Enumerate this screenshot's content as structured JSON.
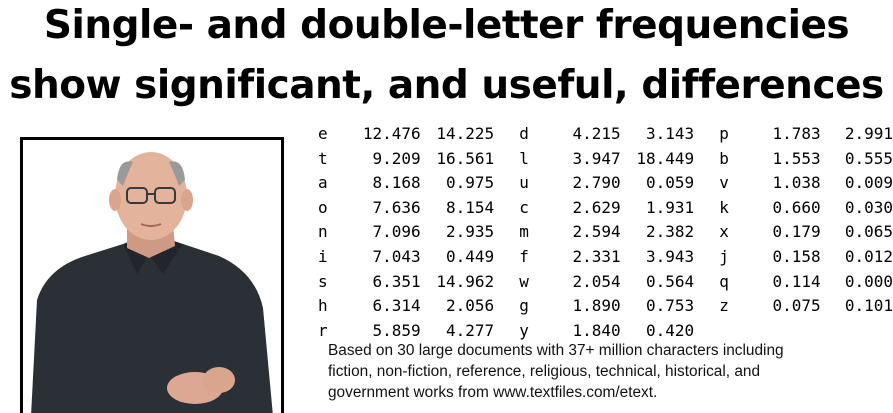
{
  "title": {
    "line1": "Single- and double-letter frequencies",
    "line2": "show significant, and useful, differences"
  },
  "table": {
    "columns": [
      [
        {
          "letter": "e",
          "single": "12.476",
          "double": "14.225"
        },
        {
          "letter": "t",
          "single": "9.209",
          "double": "16.561"
        },
        {
          "letter": "a",
          "single": "8.168",
          "double": "0.975"
        },
        {
          "letter": "o",
          "single": "7.636",
          "double": "8.154"
        },
        {
          "letter": "n",
          "single": "7.096",
          "double": "2.935"
        },
        {
          "letter": "i",
          "single": "7.043",
          "double": "0.449"
        },
        {
          "letter": "s",
          "single": "6.351",
          "double": "14.962"
        },
        {
          "letter": "h",
          "single": "6.314",
          "double": "2.056"
        },
        {
          "letter": "r",
          "single": "5.859",
          "double": "4.277"
        }
      ],
      [
        {
          "letter": "d",
          "single": "4.215",
          "double": "3.143"
        },
        {
          "letter": "l",
          "single": "3.947",
          "double": "18.449"
        },
        {
          "letter": "u",
          "single": "2.790",
          "double": "0.059"
        },
        {
          "letter": "c",
          "single": "2.629",
          "double": "1.931"
        },
        {
          "letter": "m",
          "single": "2.594",
          "double": "2.382"
        },
        {
          "letter": "f",
          "single": "2.331",
          "double": "3.943"
        },
        {
          "letter": "w",
          "single": "2.054",
          "double": "0.564"
        },
        {
          "letter": "g",
          "single": "1.890",
          "double": "0.753"
        },
        {
          "letter": "y",
          "single": "1.840",
          "double": "0.420"
        }
      ],
      [
        {
          "letter": "p",
          "single": "1.783",
          "double": "2.991"
        },
        {
          "letter": "b",
          "single": "1.553",
          "double": "0.555"
        },
        {
          "letter": "v",
          "single": "1.038",
          "double": "0.009"
        },
        {
          "letter": "k",
          "single": "0.660",
          "double": "0.030"
        },
        {
          "letter": "x",
          "single": "0.179",
          "double": "0.065"
        },
        {
          "letter": "j",
          "single": "0.158",
          "double": "0.012"
        },
        {
          "letter": "q",
          "single": "0.114",
          "double": "0.000"
        },
        {
          "letter": "z",
          "single": "0.075",
          "double": "0.101"
        }
      ]
    ]
  },
  "note": {
    "line1": "Based on 30 large documents with 37+ million characters including",
    "line2": "fiction, non-fiction, reference, religious, technical, historical, and",
    "line3": "government works from www.textfiles.com/etext."
  },
  "colors": {
    "text": "#000000",
    "background": "#ffffff",
    "frame": "#000000",
    "shirt": "#2b3037",
    "skin": "#e3b39b"
  }
}
